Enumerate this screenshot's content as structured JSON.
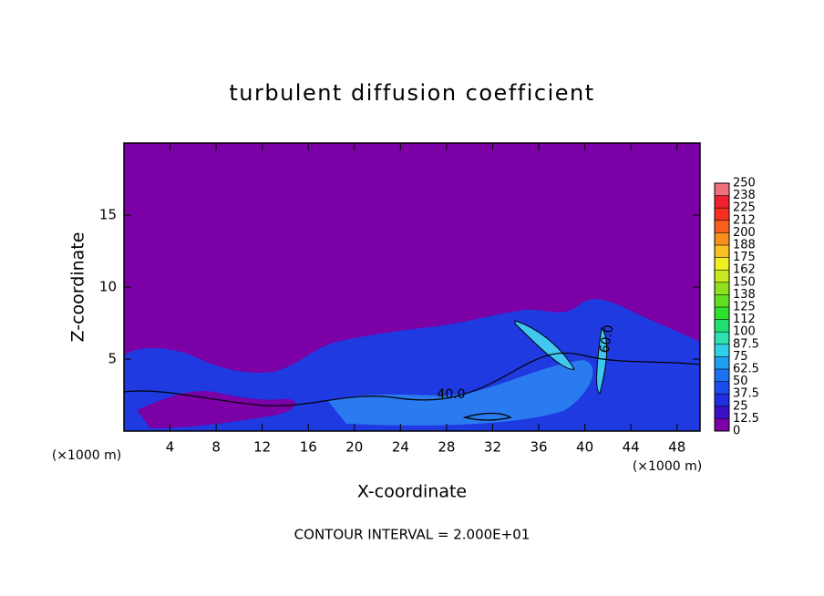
{
  "chart_data": {
    "type": "contour",
    "title": "turbulent diffusion coefficient",
    "x_label": "X-coordinate",
    "y_label": "Z-coordinate",
    "unit_labels": [
      "(×1000 m)",
      "(×1000 m)"
    ],
    "footer": "CONTOUR INTERVAL = 2.000E+01",
    "annotations": [
      "40.0",
      "60.0"
    ],
    "xlim": [
      0,
      50
    ],
    "xticks": [
      4,
      8,
      12,
      16,
      20,
      24,
      28,
      32,
      36,
      40,
      44,
      48
    ],
    "ylim": [
      0,
      20
    ],
    "yticks": [
      5,
      10,
      15
    ],
    "colorbar": {
      "lim": [
        0,
        250
      ],
      "ticks": [
        0,
        12.5,
        25,
        37.5,
        50,
        62.5,
        75,
        87.5,
        100,
        {
          "value": 112.5,
          "label": "112"
        },
        125,
        {
          "value": 137.5,
          "label": "138"
        },
        150,
        {
          "value": 162.5,
          "label": "162"
        },
        175,
        {
          "value": 187.5,
          "label": "188"
        },
        200,
        {
          "value": 212.5,
          "label": "212"
        },
        225,
        {
          "value": 237.5,
          "label": "238"
        },
        250
      ],
      "colors": [
        "#7b00a6",
        "#3a10c8",
        "#1f2ee0",
        "#1a4cf0",
        "#1a72f0",
        "#20a0f0",
        "#30d0e8",
        "#30e0b0",
        "#20e070",
        "#30e030",
        "#60e020",
        "#90e020",
        "#c8e820",
        "#f0f020",
        "#f8c020",
        "#f89020",
        "#f86020",
        "#f83020",
        "#f02030",
        "#f07080"
      ]
    }
  }
}
